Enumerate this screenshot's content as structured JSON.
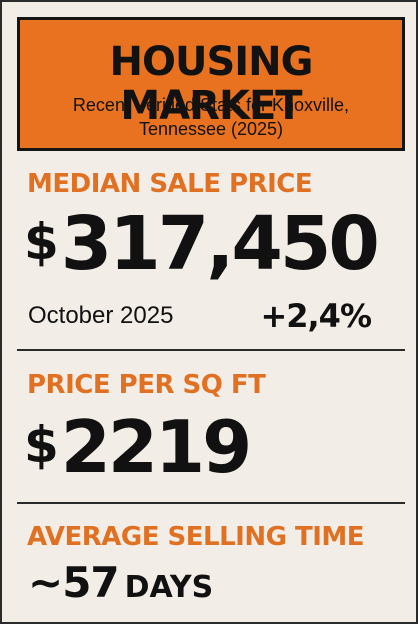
{
  "header": {
    "title": "HOUSING MARKET",
    "subtitle": "Recent Verified Stats for Knoxville, Tennessee (2025)"
  },
  "median": {
    "label": "MEDIAN SALE PRICE",
    "currency": "$",
    "amount": "317,450",
    "date": "October 2025",
    "change": "+2,4%"
  },
  "price_per_sqft": {
    "label": "PRICE PER SQ FT",
    "currency": "$",
    "amount": "2219"
  },
  "selling_time": {
    "label": "AVERAGE SELLING TIME",
    "value": "~57",
    "unit": "DAYS"
  },
  "colors": {
    "accent": "#e8721f",
    "label_orange": "#e07122",
    "background": "#f3ede7",
    "text": "#111111"
  }
}
